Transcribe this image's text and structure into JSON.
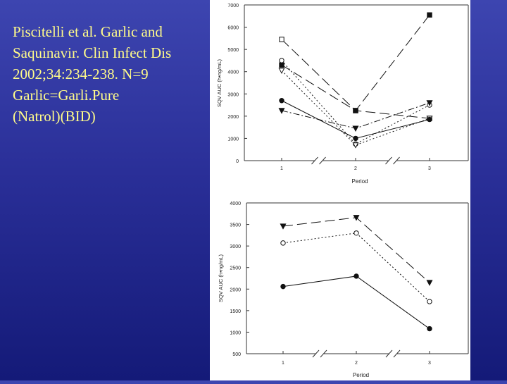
{
  "slide": {
    "citation_lines": [
      "Piscitelli et al. Garlic and",
      "Saquinavir. Clin Infect Dis",
      "2002;34:234-238. N=9",
      "Garlic=Garli.Pure",
      "(Natrol)(BID)"
    ],
    "text_color": "#fffb8a",
    "background": "#2a2f98"
  },
  "chart_data": [
    {
      "type": "line",
      "xlabel": "Period",
      "ylabel": "SQV AUC (h•ng/mL)",
      "categories": [
        "1",
        "2",
        "3"
      ],
      "ylim": [
        0,
        7000
      ],
      "yticks": [
        0,
        1000,
        2000,
        3000,
        4000,
        5000,
        6000,
        7000
      ],
      "axis_breaks": true,
      "series": [
        {
          "marker": "open-square",
          "dash": "long",
          "values": [
            5450,
            2250,
            1900
          ]
        },
        {
          "marker": "filled-square",
          "dash": "long",
          "values": [
            4300,
            2250,
            6550
          ]
        },
        {
          "marker": "open-circle",
          "dash": "dot",
          "values": [
            4500,
            750,
            2500
          ]
        },
        {
          "marker": "open-triangle",
          "dash": "dot",
          "values": [
            4050,
            700,
            1900
          ]
        },
        {
          "marker": "filled-circle",
          "dash": "solid",
          "values": [
            2700,
            1000,
            1850
          ]
        },
        {
          "marker": "filled-triangle",
          "dash": "dashdot",
          "values": [
            2250,
            1450,
            2600
          ]
        }
      ]
    },
    {
      "type": "line",
      "xlabel": "Period",
      "ylabel": "SQV AUC (h•ng/mL)",
      "categories": [
        "1",
        "2",
        "3"
      ],
      "ylim": [
        500,
        4000
      ],
      "yticks": [
        500,
        1000,
        1500,
        2000,
        2500,
        3000,
        3500,
        4000
      ],
      "axis_breaks": true,
      "series": [
        {
          "marker": "filled-triangle",
          "dash": "long",
          "values": [
            3460,
            3660,
            2150
          ]
        },
        {
          "marker": "open-circle",
          "dash": "dot",
          "values": [
            3070,
            3300,
            1710
          ]
        },
        {
          "marker": "filled-circle",
          "dash": "solid",
          "values": [
            2060,
            2300,
            1080
          ]
        }
      ]
    }
  ]
}
